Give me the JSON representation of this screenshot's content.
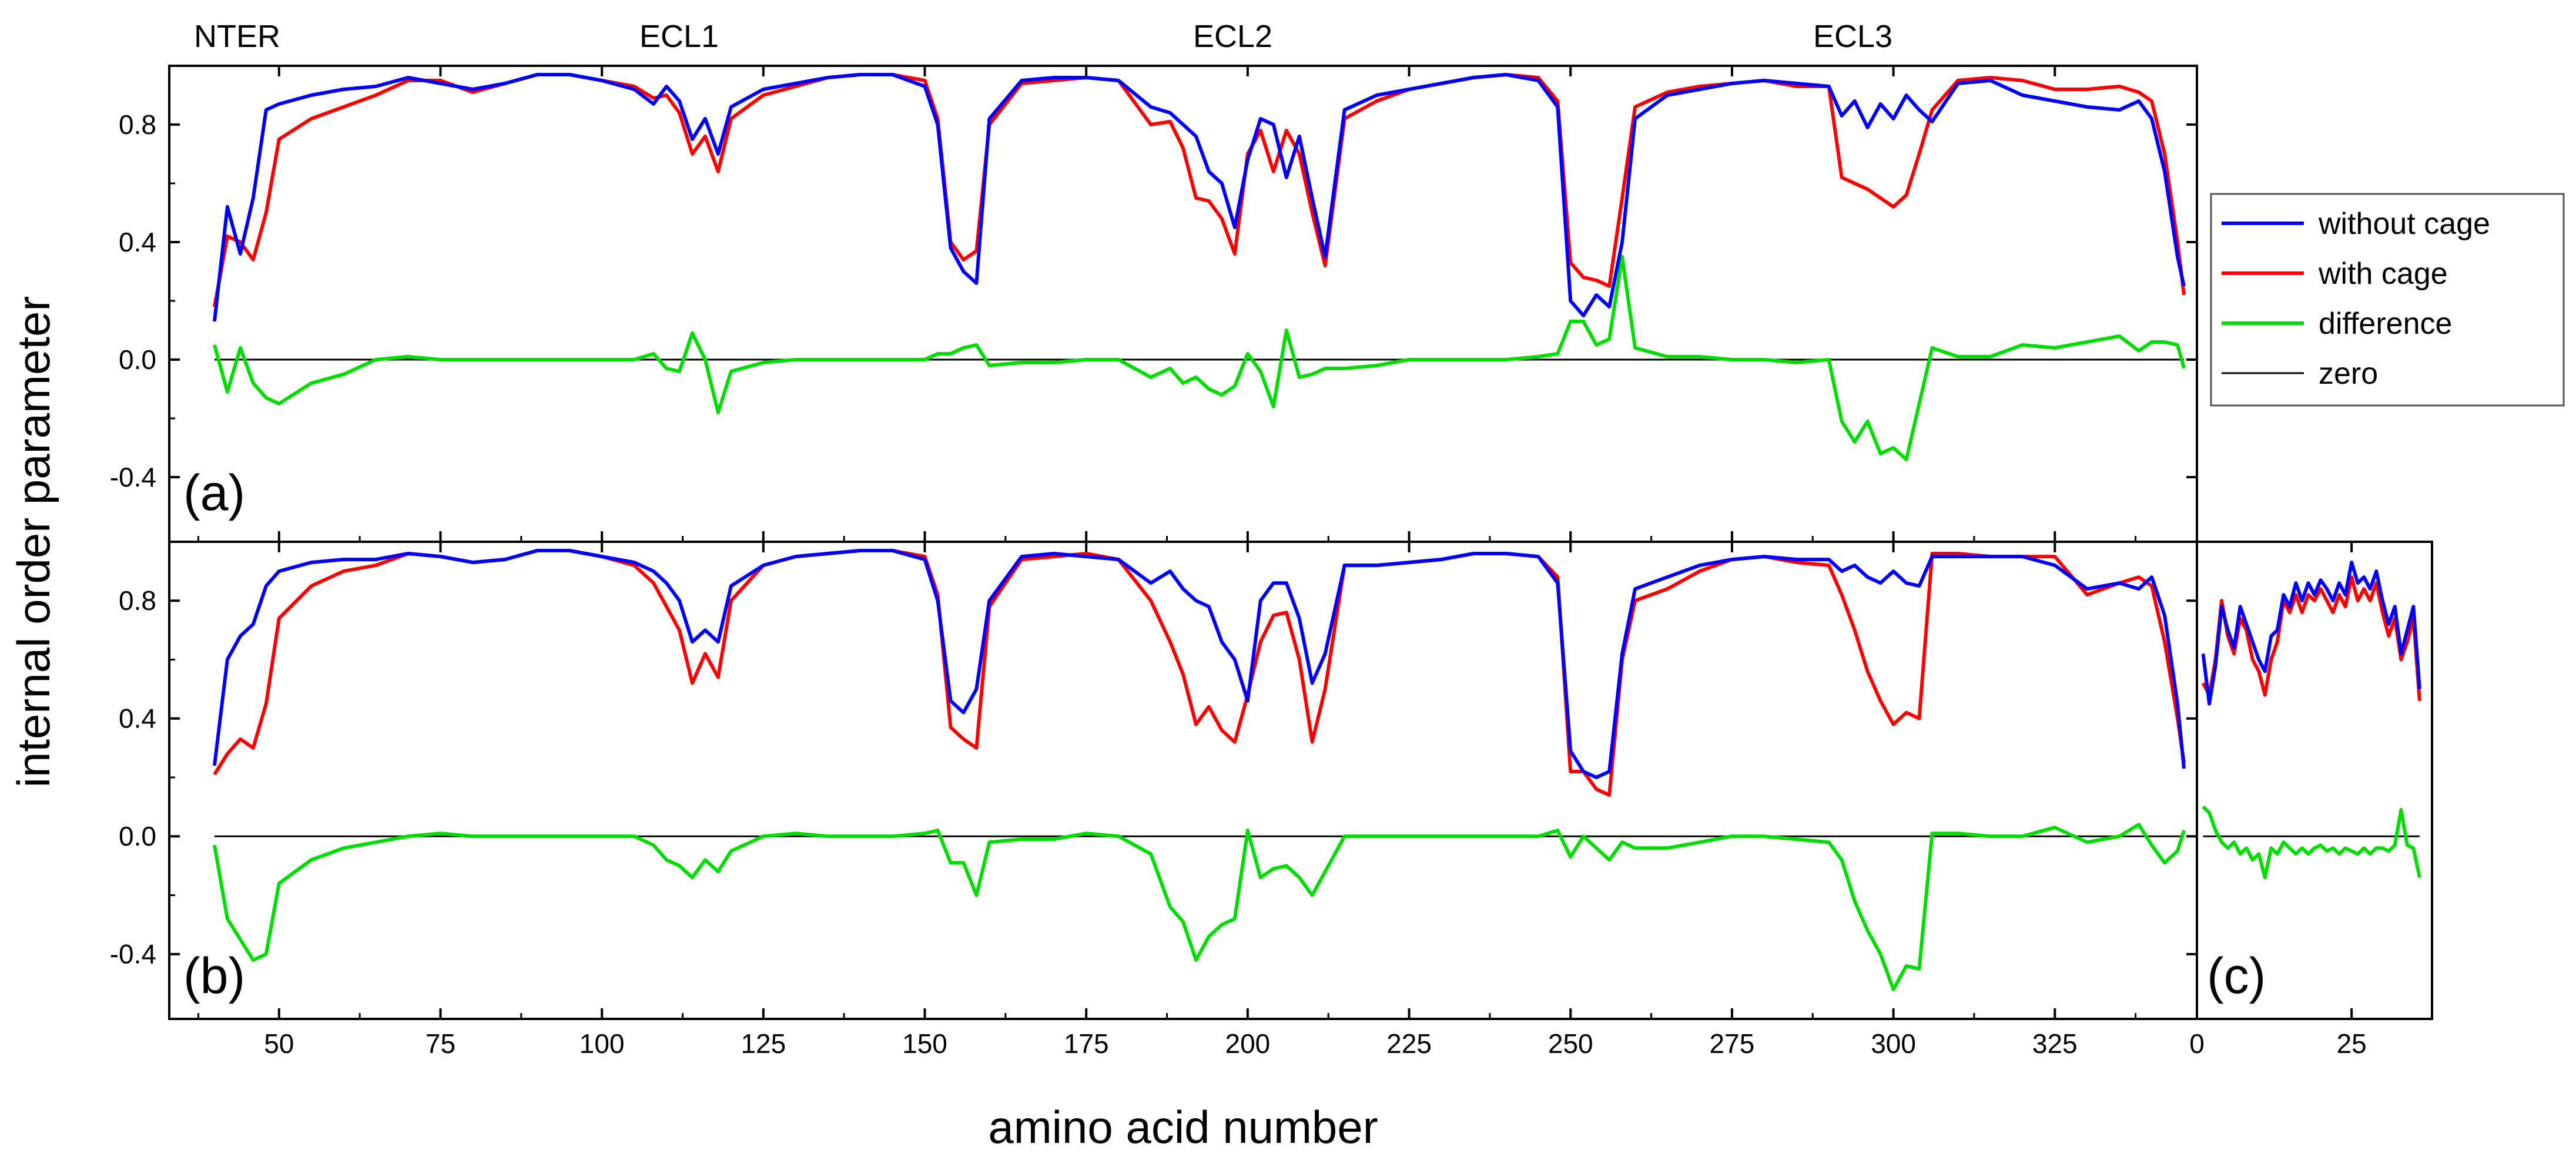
{
  "colors": {
    "without_cage": "#0000ff",
    "with_cage": "#ff0000",
    "difference": "#00dd00",
    "zero": "#000000"
  },
  "chart_data": {
    "type": "line",
    "xlabel": "amino acid number",
    "ylabel": "internal order parameter",
    "region_labels": [
      "NTER",
      "ECL1",
      "ECL2",
      "ECL3"
    ],
    "legend": {
      "placement": "right",
      "entries": [
        {
          "key": "without_cage",
          "label": "without cage"
        },
        {
          "key": "with_cage",
          "label": "with cage"
        },
        {
          "key": "difference",
          "label": "difference"
        },
        {
          "key": "zero",
          "label": "zero"
        }
      ]
    },
    "panels": [
      {
        "label": "(a)",
        "xlim": [
          33,
          347
        ],
        "ylim": [
          -0.62,
          1.0
        ],
        "xticks": [
          50,
          75,
          100,
          125,
          150,
          175,
          200,
          225,
          250,
          275,
          300,
          325
        ],
        "yticks": [
          -0.4,
          0.0,
          0.4,
          0.8
        ],
        "show_tick_labels_x": false,
        "x": [
          40,
          42,
          44,
          46,
          48,
          50,
          55,
          60,
          65,
          70,
          75,
          80,
          85,
          90,
          95,
          100,
          105,
          108,
          110,
          112,
          114,
          116,
          118,
          120,
          125,
          130,
          135,
          140,
          145,
          150,
          152,
          154,
          156,
          158,
          160,
          165,
          170,
          175,
          180,
          185,
          188,
          190,
          192,
          194,
          196,
          198,
          200,
          202,
          204,
          206,
          208,
          210,
          212,
          215,
          220,
          225,
          230,
          235,
          240,
          245,
          248,
          250,
          252,
          254,
          256,
          258,
          260,
          265,
          270,
          275,
          280,
          285,
          290,
          292,
          294,
          296,
          298,
          300,
          302,
          304,
          306,
          310,
          315,
          320,
          325,
          330,
          335,
          338,
          340,
          342,
          344,
          345
        ],
        "series": {
          "without_cage": [
            0.13,
            0.52,
            0.36,
            0.55,
            0.85,
            0.87,
            0.9,
            0.92,
            0.93,
            0.96,
            0.94,
            0.92,
            0.94,
            0.97,
            0.97,
            0.95,
            0.92,
            0.87,
            0.93,
            0.88,
            0.75,
            0.82,
            0.7,
            0.86,
            0.92,
            0.94,
            0.96,
            0.97,
            0.97,
            0.93,
            0.8,
            0.38,
            0.3,
            0.26,
            0.82,
            0.95,
            0.96,
            0.96,
            0.95,
            0.86,
            0.84,
            0.8,
            0.76,
            0.64,
            0.6,
            0.45,
            0.68,
            0.82,
            0.8,
            0.62,
            0.76,
            0.55,
            0.35,
            0.85,
            0.9,
            0.92,
            0.94,
            0.96,
            0.97,
            0.95,
            0.86,
            0.2,
            0.15,
            0.22,
            0.18,
            0.4,
            0.82,
            0.9,
            0.92,
            0.94,
            0.95,
            0.94,
            0.93,
            0.83,
            0.88,
            0.79,
            0.87,
            0.82,
            0.9,
            0.85,
            0.81,
            0.94,
            0.95,
            0.9,
            0.88,
            0.86,
            0.85,
            0.88,
            0.82,
            0.64,
            0.35,
            0.25
          ],
          "with_cage": [
            0.18,
            0.42,
            0.4,
            0.34,
            0.5,
            0.75,
            0.82,
            0.86,
            0.9,
            0.95,
            0.95,
            0.91,
            0.94,
            0.97,
            0.97,
            0.95,
            0.93,
            0.89,
            0.9,
            0.84,
            0.7,
            0.76,
            0.64,
            0.82,
            0.9,
            0.93,
            0.96,
            0.97,
            0.97,
            0.95,
            0.82,
            0.4,
            0.34,
            0.37,
            0.8,
            0.94,
            0.95,
            0.96,
            0.95,
            0.8,
            0.81,
            0.72,
            0.55,
            0.54,
            0.48,
            0.36,
            0.7,
            0.78,
            0.64,
            0.78,
            0.7,
            0.5,
            0.32,
            0.82,
            0.88,
            0.92,
            0.94,
            0.96,
            0.97,
            0.96,
            0.88,
            0.33,
            0.28,
            0.27,
            0.25,
            0.55,
            0.86,
            0.91,
            0.93,
            0.94,
            0.95,
            0.93,
            0.93,
            0.62,
            0.6,
            0.58,
            0.55,
            0.52,
            0.56,
            0.7,
            0.85,
            0.95,
            0.96,
            0.95,
            0.92,
            0.92,
            0.93,
            0.91,
            0.88,
            0.7,
            0.4,
            0.22
          ],
          "difference": [
            0.05,
            -0.11,
            0.04,
            -0.08,
            -0.13,
            -0.15,
            -0.08,
            -0.05,
            0.0,
            0.01,
            0.0,
            0.0,
            0.0,
            0.0,
            0.0,
            0.0,
            0.0,
            0.02,
            -0.03,
            -0.04,
            0.09,
            0.0,
            -0.18,
            -0.04,
            -0.01,
            0.0,
            0.0,
            0.0,
            0.0,
            0.0,
            0.02,
            0.02,
            0.04,
            0.05,
            -0.02,
            -0.01,
            -0.01,
            0.0,
            0.0,
            -0.06,
            -0.03,
            -0.08,
            -0.06,
            -0.1,
            -0.12,
            -0.09,
            0.02,
            -0.04,
            -0.16,
            0.1,
            -0.06,
            -0.05,
            -0.03,
            -0.03,
            -0.02,
            0.0,
            0.0,
            0.0,
            0.0,
            0.01,
            0.02,
            0.13,
            0.13,
            0.05,
            0.07,
            0.35,
            0.04,
            0.01,
            0.01,
            0.0,
            0.0,
            -0.01,
            0.0,
            -0.21,
            -0.28,
            -0.21,
            -0.32,
            -0.3,
            -0.34,
            -0.15,
            0.04,
            0.01,
            0.01,
            0.05,
            0.04,
            0.06,
            0.08,
            0.03,
            0.06,
            0.06,
            0.05,
            -0.03
          ]
        }
      },
      {
        "label": "(b)",
        "xlim": [
          33,
          347
        ],
        "ylim": [
          -0.62,
          1.0
        ],
        "xticks": [
          50,
          75,
          100,
          125,
          150,
          175,
          200,
          225,
          250,
          275,
          300,
          325
        ],
        "yticks": [
          -0.4,
          0.0,
          0.4,
          0.8
        ],
        "show_tick_labels_x": true,
        "x": [
          40,
          42,
          44,
          46,
          48,
          50,
          55,
          60,
          65,
          70,
          75,
          80,
          85,
          90,
          95,
          100,
          105,
          108,
          110,
          112,
          114,
          116,
          118,
          120,
          125,
          130,
          135,
          140,
          145,
          150,
          152,
          154,
          156,
          158,
          160,
          165,
          170,
          175,
          180,
          185,
          188,
          190,
          192,
          194,
          196,
          198,
          200,
          202,
          204,
          206,
          208,
          210,
          212,
          215,
          220,
          225,
          230,
          235,
          240,
          245,
          248,
          250,
          252,
          254,
          256,
          258,
          260,
          265,
          270,
          275,
          280,
          285,
          290,
          292,
          294,
          296,
          298,
          300,
          302,
          304,
          306,
          310,
          315,
          320,
          325,
          330,
          335,
          338,
          340,
          342,
          344,
          345
        ],
        "series": {
          "without_cage": [
            0.24,
            0.6,
            0.68,
            0.72,
            0.85,
            0.9,
            0.93,
            0.94,
            0.94,
            0.96,
            0.95,
            0.93,
            0.94,
            0.97,
            0.97,
            0.95,
            0.93,
            0.9,
            0.86,
            0.8,
            0.66,
            0.7,
            0.66,
            0.85,
            0.92,
            0.95,
            0.96,
            0.97,
            0.97,
            0.94,
            0.8,
            0.46,
            0.42,
            0.5,
            0.8,
            0.95,
            0.96,
            0.95,
            0.94,
            0.86,
            0.9,
            0.84,
            0.8,
            0.78,
            0.66,
            0.6,
            0.46,
            0.8,
            0.86,
            0.86,
            0.74,
            0.52,
            0.62,
            0.92,
            0.92,
            0.93,
            0.94,
            0.96,
            0.96,
            0.95,
            0.86,
            0.29,
            0.22,
            0.2,
            0.22,
            0.62,
            0.84,
            0.88,
            0.92,
            0.94,
            0.95,
            0.94,
            0.94,
            0.9,
            0.92,
            0.88,
            0.86,
            0.9,
            0.86,
            0.85,
            0.95,
            0.95,
            0.95,
            0.95,
            0.92,
            0.84,
            0.86,
            0.84,
            0.88,
            0.75,
            0.45,
            0.23
          ],
          "with_cage": [
            0.21,
            0.28,
            0.33,
            0.3,
            0.45,
            0.74,
            0.85,
            0.9,
            0.92,
            0.96,
            0.95,
            0.93,
            0.94,
            0.97,
            0.97,
            0.95,
            0.92,
            0.86,
            0.78,
            0.7,
            0.52,
            0.62,
            0.54,
            0.8,
            0.92,
            0.95,
            0.96,
            0.97,
            0.97,
            0.95,
            0.82,
            0.37,
            0.33,
            0.3,
            0.78,
            0.94,
            0.95,
            0.96,
            0.94,
            0.8,
            0.66,
            0.55,
            0.38,
            0.44,
            0.36,
            0.32,
            0.48,
            0.66,
            0.75,
            0.76,
            0.6,
            0.32,
            0.5,
            0.92,
            0.92,
            0.93,
            0.94,
            0.96,
            0.96,
            0.95,
            0.88,
            0.22,
            0.22,
            0.16,
            0.14,
            0.6,
            0.8,
            0.84,
            0.9,
            0.94,
            0.95,
            0.93,
            0.92,
            0.82,
            0.7,
            0.56,
            0.46,
            0.38,
            0.42,
            0.4,
            0.96,
            0.96,
            0.95,
            0.95,
            0.95,
            0.82,
            0.86,
            0.88,
            0.85,
            0.66,
            0.4,
            0.25
          ],
          "difference": [
            -0.03,
            -0.28,
            -0.35,
            -0.42,
            -0.4,
            -0.16,
            -0.08,
            -0.04,
            -0.02,
            0.0,
            0.01,
            0.0,
            0.0,
            0.0,
            0.0,
            0.0,
            0.0,
            -0.03,
            -0.08,
            -0.1,
            -0.14,
            -0.08,
            -0.12,
            -0.05,
            0.0,
            0.01,
            0.0,
            0.0,
            0.0,
            0.01,
            0.02,
            -0.09,
            -0.09,
            -0.2,
            -0.02,
            -0.01,
            -0.01,
            0.01,
            0.0,
            -0.06,
            -0.24,
            -0.29,
            -0.42,
            -0.34,
            -0.3,
            -0.28,
            0.02,
            -0.14,
            -0.11,
            -0.1,
            -0.14,
            -0.2,
            -0.12,
            0.0,
            0.0,
            0.0,
            0.0,
            0.0,
            0.0,
            0.0,
            0.02,
            -0.07,
            0.0,
            -0.04,
            -0.08,
            -0.02,
            -0.04,
            -0.04,
            -0.02,
            0.0,
            0.0,
            -0.01,
            -0.02,
            -0.08,
            -0.22,
            -0.32,
            -0.4,
            -0.52,
            -0.44,
            -0.45,
            0.01,
            0.01,
            0.0,
            0.0,
            0.03,
            -0.02,
            0.0,
            0.04,
            -0.03,
            -0.09,
            -0.05,
            0.02
          ]
        }
      },
      {
        "label": "(c)",
        "xlim": [
          0,
          38
        ],
        "ylim": [
          -0.62,
          1.0
        ],
        "xticks": [
          0,
          25
        ],
        "yticks": [],
        "show_tick_labels_x": true,
        "x": [
          1,
          2,
          3,
          4,
          5,
          6,
          7,
          8,
          9,
          10,
          11,
          12,
          13,
          14,
          15,
          16,
          17,
          18,
          19,
          20,
          21,
          22,
          23,
          24,
          25,
          26,
          27,
          28,
          29,
          30,
          31,
          32,
          33,
          34,
          35,
          36
        ],
        "series": {
          "without_cage": [
            0.62,
            0.45,
            0.58,
            0.78,
            0.7,
            0.64,
            0.78,
            0.72,
            0.66,
            0.6,
            0.56,
            0.68,
            0.7,
            0.82,
            0.78,
            0.86,
            0.8,
            0.86,
            0.82,
            0.87,
            0.84,
            0.8,
            0.86,
            0.82,
            0.93,
            0.86,
            0.88,
            0.84,
            0.9,
            0.8,
            0.72,
            0.78,
            0.62,
            0.7,
            0.78,
            0.5
          ],
          "with_cage": [
            0.52,
            0.48,
            0.6,
            0.8,
            0.68,
            0.62,
            0.74,
            0.7,
            0.6,
            0.56,
            0.48,
            0.6,
            0.66,
            0.8,
            0.76,
            0.82,
            0.76,
            0.82,
            0.8,
            0.84,
            0.8,
            0.76,
            0.82,
            0.78,
            0.88,
            0.8,
            0.84,
            0.8,
            0.86,
            0.76,
            0.68,
            0.74,
            0.6,
            0.66,
            0.74,
            0.46
          ],
          "difference": [
            0.1,
            0.08,
            0.02,
            -0.02,
            -0.04,
            -0.02,
            -0.06,
            -0.04,
            -0.08,
            -0.06,
            -0.14,
            -0.04,
            -0.06,
            -0.02,
            -0.04,
            -0.06,
            -0.04,
            -0.06,
            -0.04,
            -0.03,
            -0.05,
            -0.04,
            -0.06,
            -0.04,
            -0.05,
            -0.06,
            -0.04,
            -0.06,
            -0.04,
            -0.04,
            -0.05,
            -0.03,
            0.09,
            -0.03,
            -0.04,
            -0.14
          ]
        }
      }
    ]
  }
}
